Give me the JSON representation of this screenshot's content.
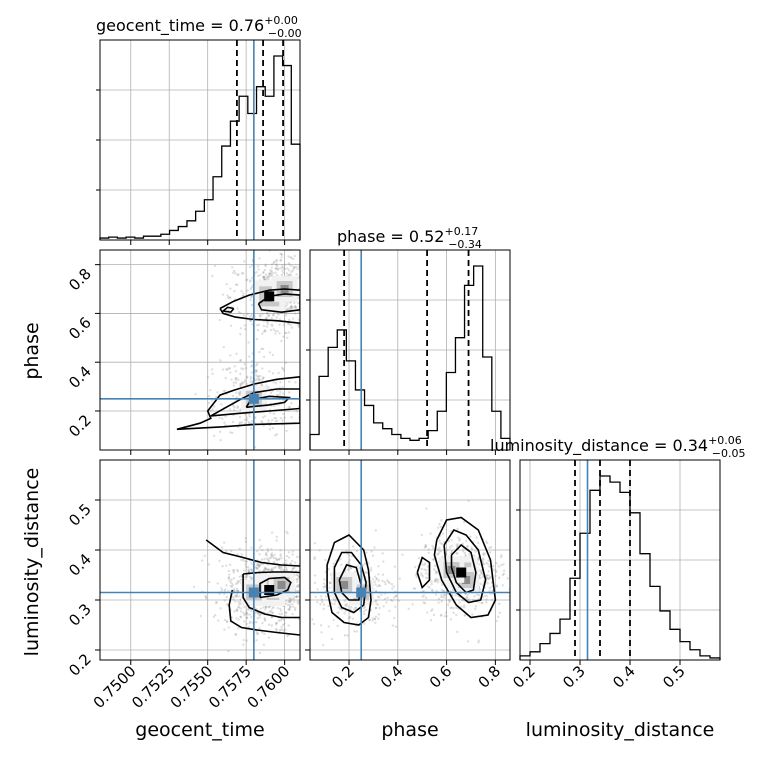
{
  "chart_data": {
    "type": "corner",
    "colors": {
      "truth": "#4682b4",
      "histogram": "#000000",
      "grid": "#b0b0b0",
      "samples": "#7f7f7f"
    },
    "parameters": [
      {
        "name": "geocent_time",
        "label": "geocent_time",
        "range": [
          0.748,
          0.761
        ],
        "ticks": [
          0.75,
          0.7525,
          0.755,
          0.7575,
          0.76
        ],
        "tick_labels": [
          "0.7500",
          "0.7525",
          "0.7550",
          "0.7575",
          "0.7600"
        ],
        "truth": 0.758,
        "title": {
          "main": "geocent_time = 0.76",
          "plus": "+0.00",
          "minus": "−0.00"
        },
        "quantiles": [
          0.7569,
          0.7586,
          0.7599
        ],
        "hist": [
          0.01,
          0.015,
          0.01,
          0.015,
          0.01,
          0.02,
          0.02,
          0.03,
          0.05,
          0.07,
          0.1,
          0.15,
          0.21,
          0.33,
          0.49,
          0.62,
          0.75,
          0.66,
          0.8,
          0.75,
          0.96,
          0.91,
          0.5
        ]
      },
      {
        "name": "phase",
        "label": "phase",
        "range": [
          0.04,
          0.86
        ],
        "ticks": [
          0.2,
          0.4,
          0.6,
          0.8
        ],
        "tick_labels": [
          "0.2",
          "0.4",
          "0.6",
          "0.8"
        ],
        "truth": 0.25,
        "title": {
          "main": "phase = 0.52",
          "plus": "+0.17",
          "minus": "−0.34"
        },
        "quantiles": [
          0.18,
          0.52,
          0.69
        ],
        "hist": [
          0.08,
          0.38,
          0.53,
          0.62,
          0.46,
          0.31,
          0.23,
          0.14,
          0.11,
          0.08,
          0.06,
          0.05,
          0.06,
          0.1,
          0.2,
          0.4,
          0.58,
          0.85,
          0.95,
          0.48,
          0.2,
          0.06
        ]
      },
      {
        "name": "luminosity_distance",
        "label": "luminosity_distance",
        "range": [
          0.18,
          0.58
        ],
        "ticks": [
          0.2,
          0.3,
          0.4,
          0.5
        ],
        "tick_labels": [
          "0.2",
          "0.3",
          "0.4",
          "0.5"
        ],
        "truth": 0.315,
        "title": {
          "main": "luminosity_distance = 0.34",
          "plus": "+0.06",
          "minus": "−0.05"
        },
        "quantiles": [
          0.29,
          0.34,
          0.4
        ],
        "hist": [
          0.02,
          0.04,
          0.08,
          0.13,
          0.2,
          0.4,
          0.62,
          0.83,
          0.9,
          0.87,
          0.82,
          0.72,
          0.52,
          0.36,
          0.24,
          0.15,
          0.09,
          0.05,
          0.02,
          0.01
        ]
      }
    ],
    "pair_plots": [
      {
        "x": "geocent_time",
        "y": "phase",
        "density_peaks": [
          [
            0.759,
            0.67
          ],
          [
            0.76,
            0.7
          ],
          [
            0.758,
            0.25
          ]
        ],
        "contours": [
          {
            "level": "outer",
            "points": [
              [
                0.7558,
                0.62
              ],
              [
                0.7567,
                0.65
              ],
              [
                0.7577,
                0.675
              ],
              [
                0.759,
                0.695
              ],
              [
                0.76,
                0.7
              ],
              [
                0.761,
                0.695
              ]
            ]
          },
          {
            "level": "outer",
            "points": [
              [
                0.761,
                0.56
              ],
              [
                0.7595,
                0.57
              ],
              [
                0.758,
                0.575
              ],
              [
                0.7568,
                0.585
              ],
              [
                0.756,
                0.6
              ],
              [
                0.7558,
                0.62
              ]
            ]
          },
          {
            "level": "inner",
            "points": [
              [
                0.7583,
                0.64
              ],
              [
                0.759,
                0.67
              ],
              [
                0.76,
                0.68
              ],
              [
                0.761,
                0.675
              ],
              [
                0.761,
                0.615
              ],
              [
                0.7598,
                0.605
              ],
              [
                0.7585,
                0.615
              ],
              [
                0.7583,
                0.64
              ]
            ]
          },
          {
            "level": "middle",
            "points": [
              [
                0.7567,
                0.62
              ],
              [
                0.7565,
                0.605
              ],
              [
                0.756,
                0.61
              ],
              [
                0.7563,
                0.625
              ],
              [
                0.7567,
                0.62
              ]
            ]
          },
          {
            "level": "outer",
            "points": [
              [
                0.753,
                0.125
              ],
              [
                0.756,
                0.135
              ],
              [
                0.758,
                0.145
              ],
              [
                0.761,
                0.15
              ],
              [
                0.761,
                0.34
              ],
              [
                0.7595,
                0.33
              ],
              [
                0.758,
                0.31
              ],
              [
                0.7567,
                0.285
              ],
              [
                0.7558,
                0.265
              ],
              [
                0.755,
                0.2
              ],
              [
                0.7552,
                0.17
              ],
              [
                0.7545,
                0.15
              ],
              [
                0.753,
                0.125
              ]
            ]
          },
          {
            "level": "middle",
            "points": [
              [
                0.7552,
                0.18
              ],
              [
                0.757,
                0.19
              ],
              [
                0.759,
                0.2
              ],
              [
                0.761,
                0.21
              ],
              [
                0.761,
                0.29
              ],
              [
                0.7595,
                0.29
              ],
              [
                0.758,
                0.275
              ],
              [
                0.7572,
                0.25
              ],
              [
                0.7562,
                0.215
              ],
              [
                0.7552,
                0.18
              ]
            ]
          },
          {
            "level": "inner",
            "points": [
              [
                0.7575,
                0.215
              ],
              [
                0.759,
                0.225
              ],
              [
                0.76,
                0.235
              ],
              [
                0.7603,
                0.255
              ],
              [
                0.759,
                0.26
              ],
              [
                0.7578,
                0.245
              ],
              [
                0.7575,
                0.215
              ]
            ]
          }
        ]
      },
      {
        "x": "geocent_time",
        "y": "luminosity_distance",
        "density_peaks": [
          [
            0.759,
            0.32
          ],
          [
            0.7598,
            0.33
          ],
          [
            0.758,
            0.315
          ]
        ],
        "contours": [
          {
            "level": "outer",
            "points": [
              [
                0.7549,
                0.42
              ],
              [
                0.756,
                0.395
              ],
              [
                0.7573,
                0.385
              ],
              [
                0.7585,
                0.375
              ],
              [
                0.7598,
                0.37
              ],
              [
                0.761,
                0.368
              ]
            ]
          },
          {
            "level": "outer",
            "points": [
              [
                0.761,
                0.23
              ],
              [
                0.7595,
                0.235
              ],
              [
                0.7582,
                0.24
              ],
              [
                0.7572,
                0.245
              ],
              [
                0.7565,
                0.258
              ],
              [
                0.7564,
                0.29
              ],
              [
                0.7566,
                0.32
              ]
            ]
          },
          {
            "level": "middle",
            "points": [
              [
                0.7573,
                0.352
              ],
              [
                0.7583,
                0.355
              ],
              [
                0.7593,
                0.356
              ],
              [
                0.7603,
                0.356
              ],
              [
                0.761,
                0.355
              ]
            ]
          },
          {
            "level": "middle",
            "points": [
              [
                0.761,
                0.265
              ],
              [
                0.7598,
                0.265
              ],
              [
                0.7587,
                0.272
              ],
              [
                0.7577,
                0.285
              ],
              [
                0.7573,
                0.305
              ],
              [
                0.7573,
                0.352
              ]
            ]
          },
          {
            "level": "inner",
            "points": [
              [
                0.7584,
                0.305
              ],
              [
                0.7595,
                0.31
              ],
              [
                0.7602,
                0.32
              ],
              [
                0.7604,
                0.335
              ],
              [
                0.76,
                0.345
              ],
              [
                0.759,
                0.343
              ],
              [
                0.7584,
                0.333
              ],
              [
                0.7584,
                0.305
              ]
            ]
          }
        ]
      },
      {
        "x": "phase",
        "y": "luminosity_distance",
        "density_peaks": [
          [
            0.66,
            0.355
          ],
          [
            0.68,
            0.34
          ],
          [
            0.62,
            0.36
          ],
          [
            0.25,
            0.315
          ],
          [
            0.18,
            0.33
          ]
        ],
        "contours": [
          {
            "level": "outer",
            "points": [
              [
                0.11,
                0.37
              ],
              [
                0.14,
                0.415
              ],
              [
                0.2,
                0.43
              ],
              [
                0.26,
                0.4
              ],
              [
                0.28,
                0.36
              ],
              [
                0.29,
                0.3
              ],
              [
                0.28,
                0.265
              ],
              [
                0.24,
                0.25
              ],
              [
                0.18,
                0.255
              ],
              [
                0.13,
                0.275
              ],
              [
                0.11,
                0.32
              ],
              [
                0.11,
                0.37
              ]
            ]
          },
          {
            "level": "middle",
            "points": [
              [
                0.14,
                0.365
              ],
              [
                0.17,
                0.395
              ],
              [
                0.21,
                0.395
              ],
              [
                0.25,
                0.37
              ],
              [
                0.27,
                0.335
              ],
              [
                0.26,
                0.29
              ],
              [
                0.22,
                0.275
              ],
              [
                0.17,
                0.285
              ],
              [
                0.14,
                0.315
              ],
              [
                0.14,
                0.365
              ]
            ]
          },
          {
            "level": "inner",
            "points": [
              [
                0.16,
                0.34
              ],
              [
                0.19,
                0.37
              ],
              [
                0.23,
                0.365
              ],
              [
                0.25,
                0.33
              ],
              [
                0.24,
                0.3
              ],
              [
                0.2,
                0.3
              ],
              [
                0.17,
                0.315
              ],
              [
                0.16,
                0.34
              ]
            ]
          },
          {
            "level": "outer",
            "points": [
              [
                0.56,
                0.42
              ],
              [
                0.6,
                0.46
              ],
              [
                0.66,
                0.465
              ],
              [
                0.73,
                0.44
              ],
              [
                0.78,
                0.38
              ],
              [
                0.8,
                0.3
              ],
              [
                0.77,
                0.27
              ],
              [
                0.7,
                0.265
              ],
              [
                0.64,
                0.29
              ],
              [
                0.58,
                0.34
              ],
              [
                0.55,
                0.39
              ],
              [
                0.56,
                0.42
              ]
            ]
          },
          {
            "level": "middle",
            "points": [
              [
                0.59,
                0.41
              ],
              [
                0.63,
                0.44
              ],
              [
                0.68,
                0.43
              ],
              [
                0.73,
                0.4
              ],
              [
                0.76,
                0.34
              ],
              [
                0.74,
                0.3
              ],
              [
                0.69,
                0.295
              ],
              [
                0.64,
                0.315
              ],
              [
                0.6,
                0.355
              ],
              [
                0.59,
                0.41
              ]
            ]
          },
          {
            "level": "inner",
            "points": [
              [
                0.62,
                0.39
              ],
              [
                0.66,
                0.41
              ],
              [
                0.7,
                0.395
              ],
              [
                0.72,
                0.355
              ],
              [
                0.71,
                0.32
              ],
              [
                0.68,
                0.315
              ],
              [
                0.64,
                0.335
              ],
              [
                0.62,
                0.365
              ],
              [
                0.62,
                0.39
              ]
            ]
          },
          {
            "level": "outer",
            "points": [
              [
                0.48,
                0.355
              ],
              [
                0.5,
                0.385
              ],
              [
                0.53,
                0.375
              ],
              [
                0.53,
                0.34
              ],
              [
                0.5,
                0.325
              ],
              [
                0.48,
                0.355
              ]
            ]
          }
        ]
      }
    ]
  }
}
